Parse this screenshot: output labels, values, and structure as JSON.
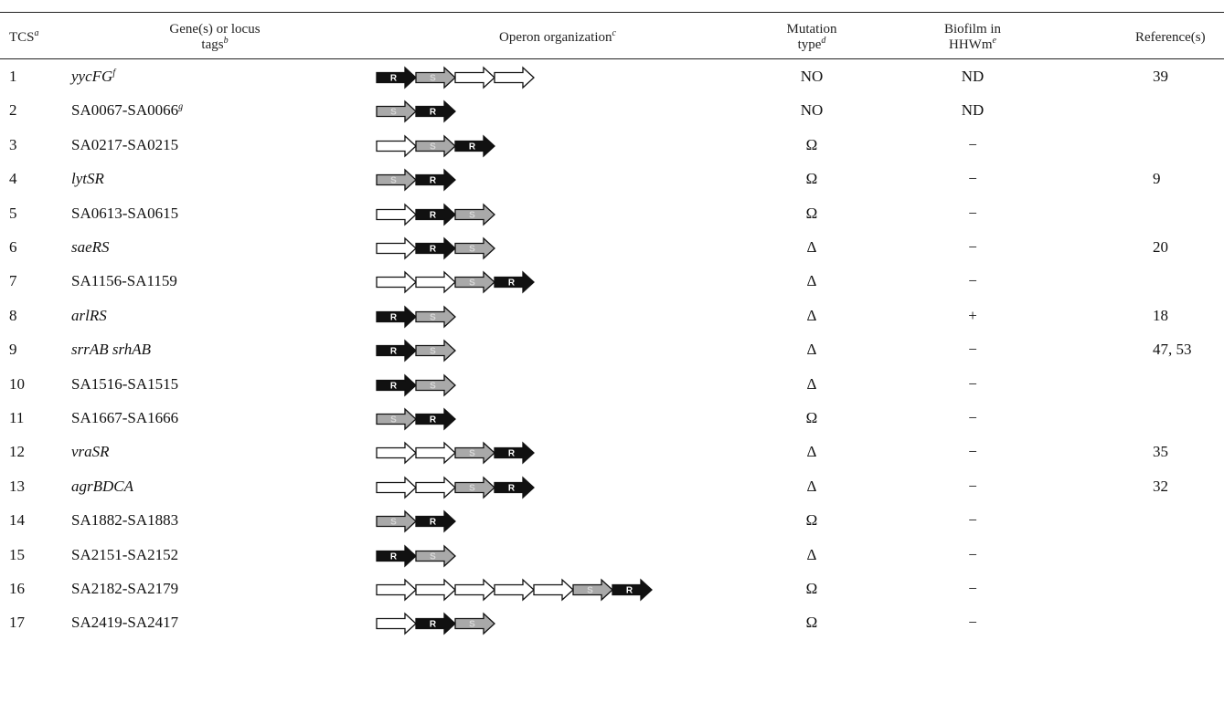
{
  "headers": {
    "tcs": "TCS",
    "tcs_sup": "a",
    "gene_line1": "Gene(s) or locus",
    "gene_line2": "tags",
    "gene_sup": "b",
    "operon": "Operon organization",
    "operon_sup": "c",
    "mutation_line1": "Mutation",
    "mutation_line2": "type",
    "mutation_sup": "d",
    "biofilm_line1": "Biofilm in",
    "biofilm_line2": "HHWm",
    "biofilm_sup": "e",
    "reference": "Reference(s)"
  },
  "gene_colors": {
    "R": "#111111",
    "S": "#a9a9a9",
    "O": "#ffffff"
  },
  "rows": [
    {
      "tcs": "1",
      "gene": "yycFG",
      "gene_sup": "f",
      "italic": true,
      "operon": [
        "R",
        "S",
        "O",
        "O"
      ],
      "mutation": "NO",
      "biofilm": "ND",
      "reference": "39"
    },
    {
      "tcs": "2",
      "gene": "SA0067-SA0066",
      "gene_sup": "g",
      "italic": false,
      "operon": [
        "S",
        "R"
      ],
      "mutation": "NO",
      "biofilm": "ND",
      "reference": ""
    },
    {
      "tcs": "3",
      "gene": "SA0217-SA0215",
      "gene_sup": "",
      "italic": false,
      "operon": [
        "O",
        "S",
        "R"
      ],
      "mutation": "Ω",
      "biofilm": "−",
      "reference": ""
    },
    {
      "tcs": "4",
      "gene": "lytSR",
      "gene_sup": "",
      "italic": true,
      "operon": [
        "S",
        "R"
      ],
      "mutation": "Ω",
      "biofilm": "−",
      "reference": "9"
    },
    {
      "tcs": "5",
      "gene": "SA0613-SA0615",
      "gene_sup": "",
      "italic": false,
      "operon": [
        "O",
        "R",
        "S"
      ],
      "mutation": "Ω",
      "biofilm": "−",
      "reference": ""
    },
    {
      "tcs": "6",
      "gene": "saeRS",
      "gene_sup": "",
      "italic": true,
      "operon": [
        "O",
        "R",
        "S"
      ],
      "mutation": "Δ",
      "biofilm": "−",
      "reference": "20"
    },
    {
      "tcs": "7",
      "gene": "SA1156-SA1159",
      "gene_sup": "",
      "italic": false,
      "operon": [
        "O",
        "O",
        "S",
        "R"
      ],
      "mutation": "Δ",
      "biofilm": "−",
      "reference": ""
    },
    {
      "tcs": "8",
      "gene": "arlRS",
      "gene_sup": "",
      "italic": true,
      "operon": [
        "R",
        "S"
      ],
      "mutation": "Δ",
      "biofilm": "+",
      "reference": "18"
    },
    {
      "tcs": "9",
      "gene": "srrAB srhAB",
      "gene_sup": "",
      "italic": true,
      "operon": [
        "R",
        "S"
      ],
      "mutation": "Δ",
      "biofilm": "−",
      "reference": "47, 53"
    },
    {
      "tcs": "10",
      "gene": "SA1516-SA1515",
      "gene_sup": "",
      "italic": false,
      "operon": [
        "R",
        "S"
      ],
      "mutation": "Δ",
      "biofilm": "−",
      "reference": ""
    },
    {
      "tcs": "11",
      "gene": "SA1667-SA1666",
      "gene_sup": "",
      "italic": false,
      "operon": [
        "S",
        "R"
      ],
      "mutation": "Ω",
      "biofilm": "−",
      "reference": ""
    },
    {
      "tcs": "12",
      "gene": "vraSR",
      "gene_sup": "",
      "italic": true,
      "operon": [
        "O",
        "O",
        "S",
        "R"
      ],
      "mutation": "Δ",
      "biofilm": "−",
      "reference": "35"
    },
    {
      "tcs": "13",
      "gene": "agrBDCA",
      "gene_sup": "",
      "italic": true,
      "operon": [
        "O",
        "O",
        "S",
        "R"
      ],
      "mutation": "Δ",
      "biofilm": "−",
      "reference": "32"
    },
    {
      "tcs": "14",
      "gene": "SA1882-SA1883",
      "gene_sup": "",
      "italic": false,
      "operon": [
        "S",
        "R"
      ],
      "mutation": "Ω",
      "biofilm": "−",
      "reference": ""
    },
    {
      "tcs": "15",
      "gene": "SA2151-SA2152",
      "gene_sup": "",
      "italic": false,
      "operon": [
        "R",
        "S"
      ],
      "mutation": "Δ",
      "biofilm": "−",
      "reference": ""
    },
    {
      "tcs": "16",
      "gene": "SA2182-SA2179",
      "gene_sup": "",
      "italic": false,
      "operon": [
        "O",
        "O",
        "O",
        "O",
        "O",
        "S",
        "R"
      ],
      "mutation": "Ω",
      "biofilm": "−",
      "reference": ""
    },
    {
      "tcs": "17",
      "gene": "SA2419-SA2417",
      "gene_sup": "",
      "italic": false,
      "operon": [
        "O",
        "R",
        "S"
      ],
      "mutation": "Ω",
      "biofilm": "−",
      "reference": ""
    }
  ]
}
